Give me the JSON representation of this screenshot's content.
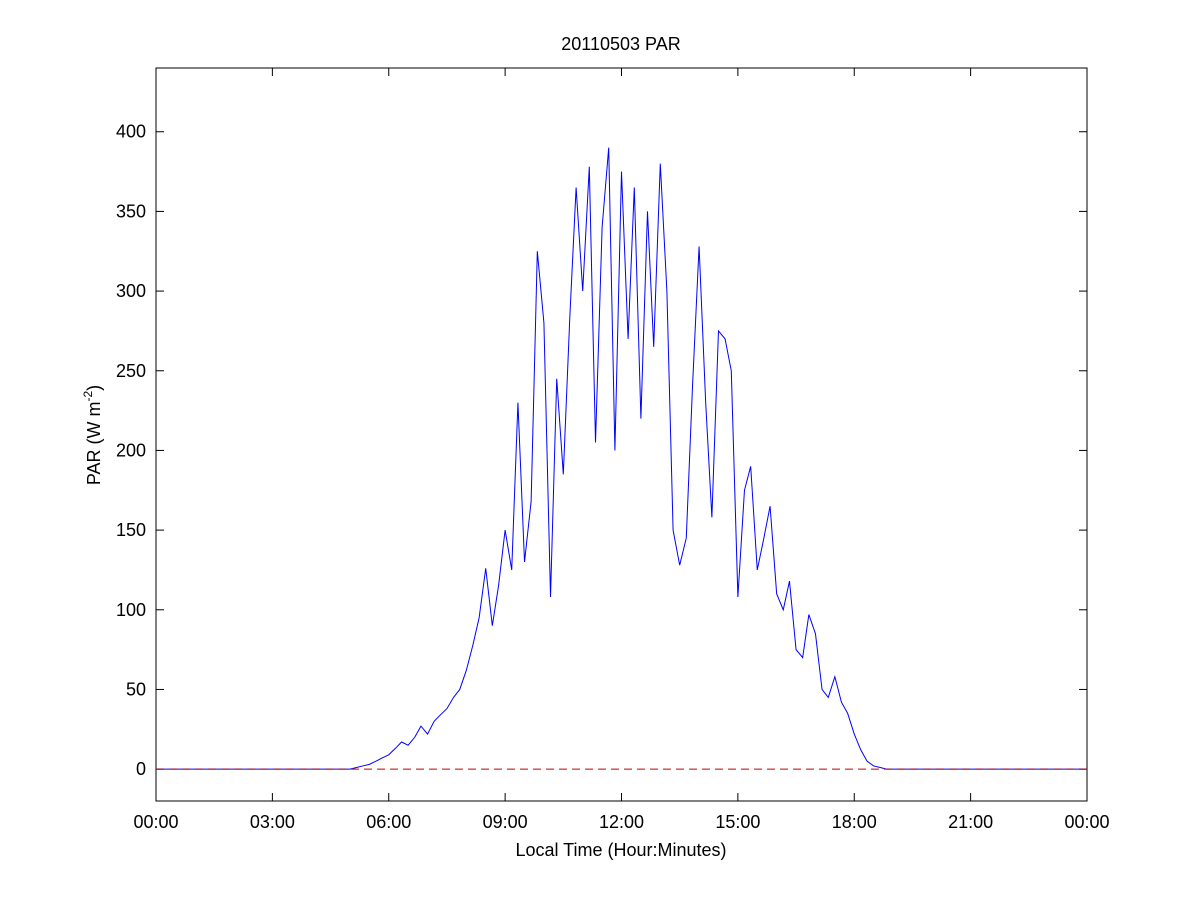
{
  "chart_data": {
    "type": "line",
    "title": "20110503 PAR",
    "xlabel": "Local Time (Hour:Minutes)",
    "ylabel_parts": [
      "PAR (W m",
      "-2",
      ")"
    ],
    "x": [
      0,
      5,
      5.17,
      5.33,
      5.5,
      5.67,
      5.83,
      6,
      6.17,
      6.33,
      6.5,
      6.67,
      6.83,
      7,
      7.17,
      7.33,
      7.5,
      7.67,
      7.83,
      8,
      8.17,
      8.33,
      8.5,
      8.67,
      8.83,
      9,
      9.17,
      9.33,
      9.5,
      9.67,
      9.83,
      10,
      10.17,
      10.33,
      10.5,
      10.67,
      10.83,
      11,
      11.17,
      11.33,
      11.5,
      11.67,
      11.83,
      12,
      12.17,
      12.33,
      12.5,
      12.67,
      12.83,
      13,
      13.17,
      13.33,
      13.5,
      13.67,
      13.83,
      14,
      14.17,
      14.33,
      14.5,
      14.67,
      14.83,
      15,
      15.17,
      15.33,
      15.5,
      15.67,
      15.83,
      16,
      16.17,
      16.33,
      16.5,
      16.67,
      16.83,
      17,
      17.17,
      17.33,
      17.5,
      17.67,
      17.83,
      18,
      18.17,
      18.33,
      18.5,
      18.67,
      18.83,
      19,
      24
    ],
    "values": [
      0,
      0,
      1,
      2,
      3,
      5,
      7,
      9,
      13,
      17,
      15,
      20,
      27,
      22,
      30,
      34,
      38,
      45,
      50,
      62,
      78,
      95,
      126,
      90,
      115,
      150,
      125,
      230,
      130,
      168,
      325,
      280,
      108,
      245,
      185,
      285,
      365,
      300,
      378,
      205,
      340,
      390,
      200,
      375,
      270,
      365,
      220,
      350,
      265,
      380,
      300,
      150,
      128,
      145,
      240,
      328,
      230,
      158,
      275,
      270,
      250,
      108,
      175,
      190,
      125,
      145,
      165,
      110,
      100,
      118,
      75,
      70,
      97,
      85,
      50,
      45,
      58,
      42,
      35,
      22,
      12,
      5,
      2,
      1,
      0,
      0,
      0
    ],
    "color": "#0000ff",
    "reference_line": {
      "value": 0,
      "color": "#c00000",
      "style": "dashed"
    },
    "xlim": [
      0,
      24
    ],
    "xticks": [
      {
        "value": 0,
        "label": "00:00"
      },
      {
        "value": 3,
        "label": "03:00"
      },
      {
        "value": 6,
        "label": "06:00"
      },
      {
        "value": 9,
        "label": "09:00"
      },
      {
        "value": 12,
        "label": "12:00"
      },
      {
        "value": 15,
        "label": "15:00"
      },
      {
        "value": 18,
        "label": "18:00"
      },
      {
        "value": 21,
        "label": "21:00"
      },
      {
        "value": 24,
        "label": "00:00"
      }
    ],
    "ylim": [
      -20,
      440
    ],
    "yticks": [
      0,
      50,
      100,
      150,
      200,
      250,
      300,
      350,
      400
    ],
    "grid": false
  }
}
